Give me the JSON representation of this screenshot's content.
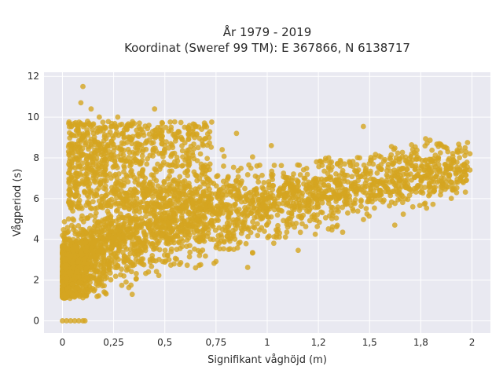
{
  "chart_data": {
    "type": "scatter",
    "title_lines": [
      "År 1979 - 2019",
      "Koordinat (Sweref 99 TM): E 367866, N 6138717"
    ],
    "xlabel": "Signifikant våghöjd (m)",
    "ylabel": "Vågperiod (s)",
    "xlim": [
      -0.09,
      2.09
    ],
    "ylim": [
      -0.6,
      12.2
    ],
    "x_ticks": [
      0,
      0.25,
      0.5,
      0.75,
      1,
      1.25,
      1.5,
      1.75,
      2
    ],
    "x_tick_labels": [
      "0",
      "0,25",
      "0,5",
      "0,75",
      "1",
      "1,2",
      "1,5",
      "1,8",
      "2"
    ],
    "y_ticks": [
      0,
      2,
      4,
      6,
      8,
      10,
      12
    ],
    "y_tick_labels": [
      "0",
      "2",
      "4",
      "6",
      "8",
      "10",
      "12"
    ],
    "grid": true,
    "marker_color": "#D4A521",
    "plot_background": "#E9E9F1",
    "series": [
      {
        "points": [
          [
            0.0,
            0.0
          ],
          [
            0.02,
            0.0
          ],
          [
            0.04,
            0.0
          ],
          [
            0.06,
            0.0
          ],
          [
            0.08,
            0.0
          ],
          [
            0.1,
            0.0
          ],
          [
            0.11,
            0.0
          ],
          [
            0.0,
            1.5
          ],
          [
            0.0,
            1.9
          ],
          [
            0.01,
            1.3
          ],
          [
            0.02,
            2.6
          ],
          [
            0.02,
            4.0
          ],
          [
            0.03,
            1.4
          ],
          [
            0.04,
            3.2
          ],
          [
            0.05,
            1.6
          ],
          [
            0.05,
            5.0
          ],
          [
            0.06,
            6.8
          ],
          [
            0.07,
            2.4
          ],
          [
            0.08,
            8.3
          ],
          [
            0.09,
            10.7
          ],
          [
            0.1,
            11.5
          ],
          [
            0.1,
            9.0
          ],
          [
            0.12,
            2.1
          ],
          [
            0.12,
            7.4
          ],
          [
            0.14,
            10.4
          ],
          [
            0.15,
            3.4
          ],
          [
            0.16,
            8.8
          ],
          [
            0.18,
            10.0
          ],
          [
            0.2,
            2.8
          ],
          [
            0.2,
            6.0
          ],
          [
            0.22,
            8.6
          ],
          [
            0.25,
            4.4
          ],
          [
            0.27,
            10.0
          ],
          [
            0.3,
            2.2
          ],
          [
            0.3,
            7.6
          ],
          [
            0.33,
            5.8
          ],
          [
            0.35,
            3.3
          ],
          [
            0.38,
            9.4
          ],
          [
            0.4,
            6.8
          ],
          [
            0.42,
            2.4
          ],
          [
            0.45,
            10.4
          ],
          [
            0.47,
            4.6
          ],
          [
            0.5,
            8.6
          ],
          [
            0.52,
            3.0
          ],
          [
            0.55,
            6.4
          ],
          [
            0.58,
            9.0
          ],
          [
            0.6,
            4.2
          ],
          [
            0.62,
            7.8
          ],
          [
            0.65,
            2.6
          ],
          [
            0.68,
            9.4
          ],
          [
            0.7,
            5.6
          ],
          [
            0.75,
            3.6
          ],
          [
            0.78,
            8.4
          ],
          [
            0.82,
            6.6
          ],
          [
            0.85,
            9.2
          ],
          [
            0.9,
            4.6
          ],
          [
            0.95,
            7.6
          ],
          [
            1.0,
            5.4
          ],
          [
            1.02,
            8.6
          ],
          [
            1.08,
            6.2
          ],
          [
            1.1,
            4.6
          ],
          [
            1.18,
            7.0
          ],
          [
            1.25,
            5.6
          ],
          [
            1.3,
            8.0
          ],
          [
            1.35,
            6.0
          ],
          [
            1.42,
            5.4
          ],
          [
            1.48,
            7.4
          ],
          [
            1.55,
            6.4
          ],
          [
            1.6,
            8.0
          ],
          [
            1.65,
            6.0
          ],
          [
            1.7,
            7.2
          ],
          [
            1.75,
            6.6
          ],
          [
            1.8,
            7.8
          ],
          [
            1.85,
            7.0
          ],
          [
            1.9,
            6.8
          ],
          [
            1.95,
            7.6
          ],
          [
            1.99,
            8.2
          ],
          [
            1.99,
            7.4
          ]
        ]
      }
    ]
  }
}
